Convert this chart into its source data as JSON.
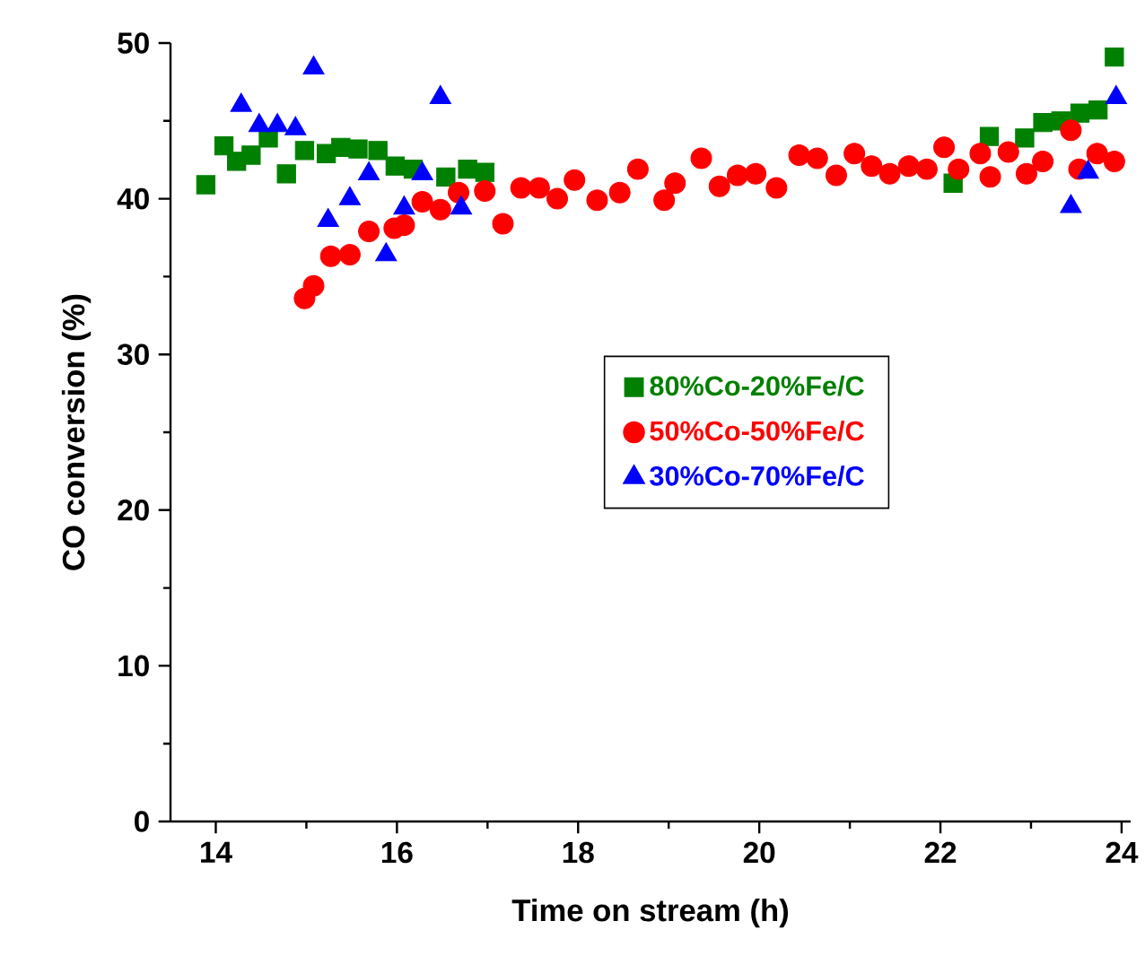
{
  "chart_data": {
    "type": "scatter",
    "xlabel": "Time on stream (h)",
    "ylabel": "CO conversion (%)",
    "xlim": [
      13.5,
      24.1
    ],
    "xticks": [
      14,
      16,
      18,
      20,
      22,
      24
    ],
    "ylim": [
      0,
      50
    ],
    "yticks": [
      0,
      10,
      20,
      30,
      40,
      50
    ],
    "grid": false,
    "legend": "center",
    "series": [
      {
        "name": "80%Co-20%Fe/C",
        "color": "#008000",
        "marker": "square",
        "x": [
          13.89,
          14.09,
          14.23,
          14.39,
          14.58,
          14.78,
          14.98,
          15.22,
          15.38,
          15.57,
          15.79,
          15.98,
          16.18,
          16.38,
          16.54,
          16.78,
          16.97,
          22.14,
          22.35,
          22.54,
          22.93,
          23.13,
          23.33,
          23.54,
          23.74,
          23.92
        ],
        "values": [
          40.9,
          43.4,
          42.4,
          42.8,
          43.9,
          41.6,
          43.1,
          42.9,
          43.3,
          43.2,
          43.1,
          42.1,
          41.9,
          null,
          41.4,
          41.9,
          41.7,
          41.0,
          null,
          44.0,
          43.9,
          44.9,
          45.0,
          45.5,
          45.7,
          49.1
        ]
      },
      {
        "name": "50%Co-50%Fe/C",
        "color": "#ff0000",
        "marker": "circle",
        "x": [
          14.98,
          15.08,
          15.27,
          15.48,
          15.69,
          15.97,
          16.08,
          16.28,
          16.48,
          16.68,
          16.97,
          17.17,
          17.37,
          17.57,
          17.77,
          17.96,
          18.21,
          18.46,
          18.66,
          18.95,
          19.07,
          19.36,
          19.56,
          19.76,
          19.96,
          20.19,
          20.44,
          20.64,
          20.85,
          21.05,
          21.24,
          21.44,
          21.65,
          21.85,
          22.04,
          22.2,
          22.44,
          22.55,
          22.75,
          22.95,
          23.13,
          23.44,
          23.53,
          23.73,
          23.92
        ],
        "values": [
          33.6,
          34.4,
          36.3,
          36.4,
          37.9,
          38.1,
          38.3,
          39.8,
          39.3,
          40.4,
          40.5,
          38.4,
          40.7,
          40.7,
          40.0,
          41.2,
          39.9,
          40.4,
          41.9,
          39.9,
          41.0,
          42.6,
          40.8,
          41.5,
          41.6,
          40.7,
          42.8,
          42.6,
          41.5,
          42.9,
          42.1,
          41.6,
          42.1,
          41.9,
          43.3,
          41.9,
          42.9,
          41.4,
          43.0,
          41.6,
          42.4,
          44.4,
          41.9,
          42.9,
          42.4
        ]
      },
      {
        "name": "30%Co-70%Fe/C",
        "color": "#0000ff",
        "marker": "triangle",
        "x": [
          14.28,
          14.48,
          14.68,
          14.88,
          15.08,
          15.24,
          15.48,
          15.69,
          15.88,
          16.08,
          16.28,
          16.48,
          16.71,
          23.44,
          23.63,
          23.94
        ],
        "values": [
          46.0,
          44.7,
          44.7,
          44.5,
          48.4,
          38.6,
          40.0,
          41.6,
          36.4,
          39.4,
          41.6,
          46.5,
          39.4,
          39.5,
          41.7,
          46.5
        ]
      }
    ]
  }
}
